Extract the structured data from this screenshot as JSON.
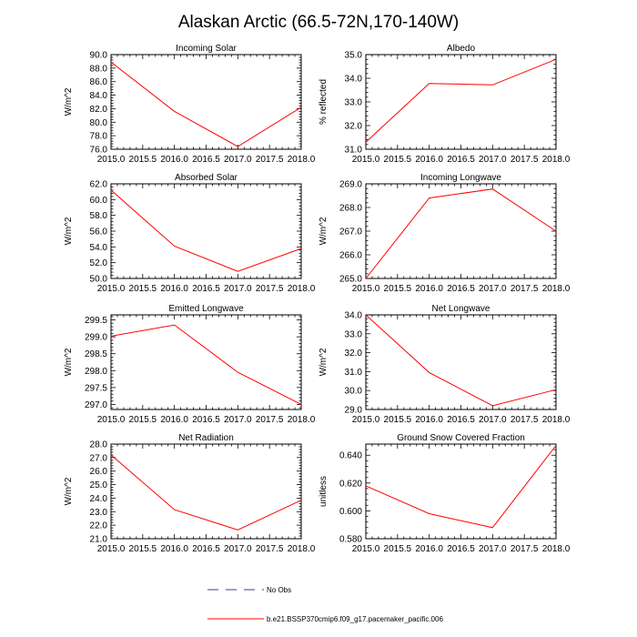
{
  "figure": {
    "title": "Alaskan Arctic (66.5-72N,170-140W)",
    "line_color": "#ff0000",
    "obs_color": "#3c3c8c"
  },
  "legend": {
    "obs_label": "No Obs",
    "model_label": "b.e21.BSSP370cmip6.f09_g17.pacemaker_pacific.006"
  },
  "chart_data": [
    {
      "type": "line",
      "title": "Incoming Solar",
      "ylabel": "W/m^2",
      "xlabel": "",
      "x": [
        2015,
        2016,
        2017,
        2018
      ],
      "values": [
        88.9,
        81.6,
        76.4,
        82.2
      ],
      "xlim": [
        2015,
        2018
      ],
      "ylim": [
        76,
        90
      ],
      "xticks": [
        2015,
        2015.5,
        2016,
        2016.5,
        2017,
        2017.5,
        2018
      ],
      "xtick_labels": [
        "2015.0",
        "2015.5",
        "2016.0",
        "2016.5",
        "2017.0",
        "2017.5",
        "2018.0"
      ],
      "yticks": [
        76,
        78,
        80,
        82,
        84,
        86,
        88,
        90
      ],
      "ytick_labels": [
        "76.0",
        "78.0",
        "80.0",
        "82.0",
        "84.0",
        "86.0",
        "88.0",
        "90.0"
      ]
    },
    {
      "type": "line",
      "title": "Albedo",
      "ylabel": "% reflected",
      "xlabel": "",
      "x": [
        2015,
        2016,
        2017,
        2018
      ],
      "values": [
        31.3,
        33.78,
        33.72,
        34.8
      ],
      "xlim": [
        2015,
        2018
      ],
      "ylim": [
        31,
        35
      ],
      "xticks": [
        2015,
        2015.5,
        2016,
        2016.5,
        2017,
        2017.5,
        2018
      ],
      "xtick_labels": [
        "2015.0",
        "2015.5",
        "2016.0",
        "2016.5",
        "2017.0",
        "2017.5",
        "2018.0"
      ],
      "yticks": [
        31,
        32,
        33,
        34,
        35
      ],
      "ytick_labels": [
        "31.0",
        "32.0",
        "33.0",
        "34.0",
        "35.0"
      ]
    },
    {
      "type": "line",
      "title": "Absorbed Solar",
      "ylabel": "W/m^2",
      "xlabel": "",
      "x": [
        2015,
        2016,
        2017,
        2018
      ],
      "values": [
        61.2,
        54.1,
        50.9,
        53.8
      ],
      "xlim": [
        2015,
        2018
      ],
      "ylim": [
        50,
        62
      ],
      "xticks": [
        2015,
        2015.5,
        2016,
        2016.5,
        2017,
        2017.5,
        2018
      ],
      "xtick_labels": [
        "2015.0",
        "2015.5",
        "2016.0",
        "2016.5",
        "2017.0",
        "2017.5",
        "2018.0"
      ],
      "yticks": [
        50,
        52,
        54,
        56,
        58,
        60,
        62
      ],
      "ytick_labels": [
        "50.0",
        "52.0",
        "54.0",
        "56.0",
        "58.0",
        "60.0",
        "62.0"
      ]
    },
    {
      "type": "line",
      "title": "Incoming Longwave",
      "ylabel": "W/m^2",
      "xlabel": "",
      "x": [
        2015,
        2016,
        2017,
        2018
      ],
      "values": [
        265.0,
        268.4,
        268.78,
        267.0
      ],
      "xlim": [
        2015,
        2018
      ],
      "ylim": [
        265,
        269
      ],
      "xticks": [
        2015,
        2015.5,
        2016,
        2016.5,
        2017,
        2017.5,
        2018
      ],
      "xtick_labels": [
        "2015.0",
        "2015.5",
        "2016.0",
        "2016.5",
        "2017.0",
        "2017.5",
        "2018.0"
      ],
      "yticks": [
        265,
        266,
        267,
        268,
        269
      ],
      "ytick_labels": [
        "265.0",
        "266.0",
        "267.0",
        "268.0",
        "269.0"
      ]
    },
    {
      "type": "line",
      "title": "Emitted Longwave",
      "ylabel": "W/m^2",
      "xlabel": "",
      "x": [
        2015,
        2016,
        2017,
        2018
      ],
      "values": [
        299.02,
        299.35,
        297.95,
        297.0
      ],
      "xlim": [
        2015,
        2018
      ],
      "ylim": [
        296.85,
        299.65
      ],
      "xticks": [
        2015,
        2015.5,
        2016,
        2016.5,
        2017,
        2017.5,
        2018
      ],
      "xtick_labels": [
        "2015.0",
        "2015.5",
        "2016.0",
        "2016.5",
        "2017.0",
        "2017.5",
        "2018.0"
      ],
      "yticks": [
        297.0,
        297.5,
        298.0,
        298.5,
        299.0,
        299.5
      ],
      "ytick_labels": [
        "297.0",
        "297.5",
        "298.0",
        "298.5",
        "299.0",
        "299.5"
      ]
    },
    {
      "type": "line",
      "title": "Net Longwave",
      "ylabel": "W/m^2",
      "xlabel": "",
      "x": [
        2015,
        2016,
        2017,
        2018
      ],
      "values": [
        34.0,
        30.95,
        29.2,
        30.05
      ],
      "xlim": [
        2015,
        2018
      ],
      "ylim": [
        29,
        34
      ],
      "xticks": [
        2015,
        2015.5,
        2016,
        2016.5,
        2017,
        2017.5,
        2018
      ],
      "xtick_labels": [
        "2015.0",
        "2015.5",
        "2016.0",
        "2016.5",
        "2017.0",
        "2017.5",
        "2018.0"
      ],
      "yticks": [
        29,
        30,
        31,
        32,
        33,
        34
      ],
      "ytick_labels": [
        "29.0",
        "30.0",
        "31.0",
        "32.0",
        "33.0",
        "34.0"
      ]
    },
    {
      "type": "line",
      "title": "Net Radiation",
      "ylabel": "W/m^2",
      "xlabel": "",
      "x": [
        2015,
        2016,
        2017,
        2018
      ],
      "values": [
        27.2,
        23.15,
        21.65,
        23.85
      ],
      "xlim": [
        2015,
        2018
      ],
      "ylim": [
        21,
        28
      ],
      "xticks": [
        2015,
        2015.5,
        2016,
        2016.5,
        2017,
        2017.5,
        2018
      ],
      "xtick_labels": [
        "2015.0",
        "2015.5",
        "2016.0",
        "2016.5",
        "2017.0",
        "2017.5",
        "2018.0"
      ],
      "yticks": [
        21,
        22,
        23,
        24,
        25,
        26,
        27,
        28
      ],
      "ytick_labels": [
        "21.0",
        "22.0",
        "23.0",
        "24.0",
        "25.0",
        "26.0",
        "27.0",
        "28.0"
      ]
    },
    {
      "type": "line",
      "title": "Ground Snow Covered Fraction",
      "ylabel": "unitless",
      "xlabel": "",
      "x": [
        2015,
        2016,
        2017,
        2018
      ],
      "values": [
        0.618,
        0.598,
        0.588,
        0.647
      ],
      "xlim": [
        2015,
        2018
      ],
      "ylim": [
        0.58,
        0.648
      ],
      "xticks": [
        2015,
        2015.5,
        2016,
        2016.5,
        2017,
        2017.5,
        2018
      ],
      "xtick_labels": [
        "2015.0",
        "2015.5",
        "2016.0",
        "2016.5",
        "2017.0",
        "2017.5",
        "2018.0"
      ],
      "yticks": [
        0.58,
        0.6,
        0.62,
        0.64
      ],
      "ytick_labels": [
        "0.580",
        "0.600",
        "0.620",
        "0.640"
      ]
    }
  ]
}
